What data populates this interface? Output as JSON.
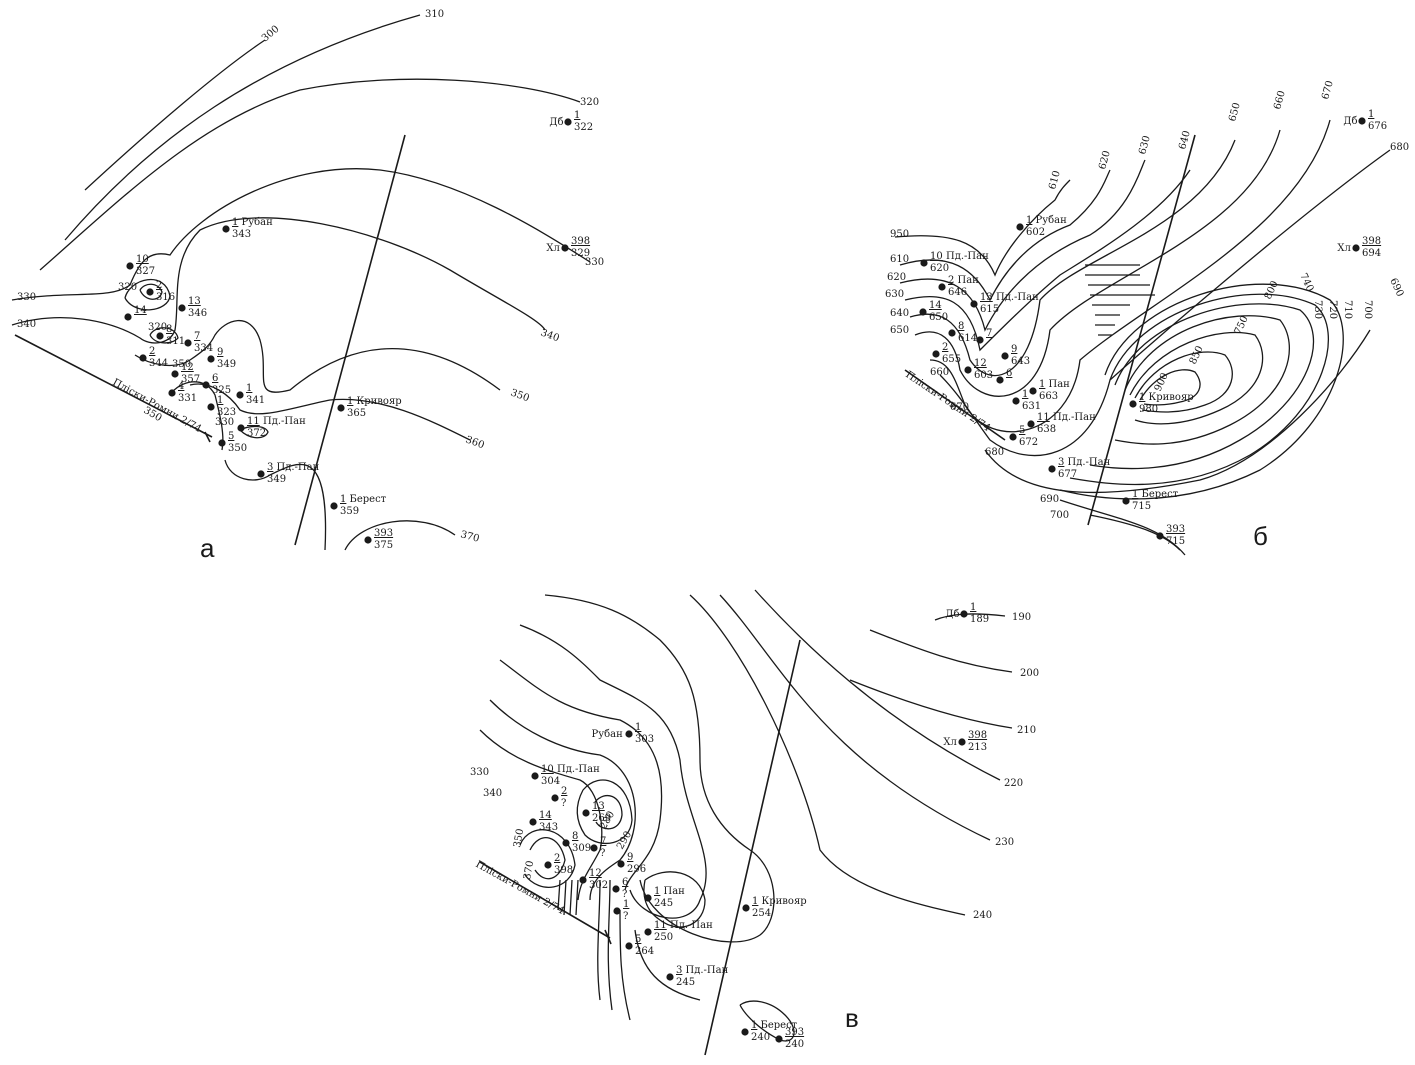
{
  "panels": [
    {
      "id": "a",
      "label": "а",
      "section_label": "Пліски-Ромни 2/74",
      "contours": [
        "300",
        "310",
        "320",
        "330",
        "330",
        "340",
        "340",
        "350",
        "360",
        "370",
        "320",
        "320",
        "350",
        "350",
        "330"
      ],
      "wells": [
        {
          "num": "1",
          "name": "Дб",
          "value": "322"
        },
        {
          "num": "398",
          "name": "Хл",
          "value": "329"
        },
        {
          "num": "1",
          "name": "Рубан",
          "value": "343"
        },
        {
          "num": "10",
          "name": "",
          "value": "327"
        },
        {
          "num": "2",
          "name": "",
          "value": "316"
        },
        {
          "num": "13",
          "name": "",
          "value": "346"
        },
        {
          "num": "14",
          "name": "",
          "value": ""
        },
        {
          "num": "8",
          "name": "",
          "value": "311"
        },
        {
          "num": "7",
          "name": "",
          "value": "334"
        },
        {
          "num": "2",
          "name": "",
          "value": "344"
        },
        {
          "num": "12",
          "name": "",
          "value": "357"
        },
        {
          "num": "9",
          "name": "",
          "value": "349"
        },
        {
          "num": "6",
          "name": "",
          "value": "325"
        },
        {
          "num": "4",
          "name": "",
          "value": "331"
        },
        {
          "num": "1",
          "name": "",
          "value": "341"
        },
        {
          "num": "1",
          "name": "",
          "value": "323"
        },
        {
          "num": "11",
          "name": "Пд.-Пан",
          "value": "372"
        },
        {
          "num": "5",
          "name": "",
          "value": "350"
        },
        {
          "num": "3",
          "name": "Пд.-Пан",
          "value": "349"
        },
        {
          "num": "1",
          "name": "Кривояр",
          "value": "365"
        },
        {
          "num": "1",
          "name": "Берест",
          "value": "359"
        },
        {
          "num": "393",
          "name": "",
          "value": "375"
        }
      ]
    },
    {
      "id": "b",
      "label": "б",
      "section_label": "Пліски-Ромни 2/74",
      "contours": [
        "610",
        "620",
        "630",
        "640",
        "650",
        "660",
        "670",
        "680",
        "690",
        "700",
        "710",
        "720",
        "730",
        "740",
        "750",
        "800",
        "850",
        "900",
        "950",
        "610",
        "620",
        "630",
        "640",
        "650",
        "660",
        "670",
        "680",
        "690",
        "700",
        "710",
        "720"
      ],
      "wells": [
        {
          "num": "1",
          "name": "Дб",
          "value": "676"
        },
        {
          "num": "398",
          "name": "Хл",
          "value": "694"
        },
        {
          "num": "1",
          "name": "Рубан",
          "value": "602"
        },
        {
          "num": "10",
          "name": "Пд.-Пан",
          "value": "620"
        },
        {
          "num": "2",
          "name": "Пан",
          "value": "646"
        },
        {
          "num": "13",
          "name": "Пд.-Пан",
          "value": "615"
        },
        {
          "num": "14",
          "name": "",
          "value": "650"
        },
        {
          "num": "8",
          "name": "",
          "value": "614"
        },
        {
          "num": "7",
          "name": "",
          "value": ""
        },
        {
          "num": "2",
          "name": "",
          "value": "655"
        },
        {
          "num": "12",
          "name": "",
          "value": "603"
        },
        {
          "num": "9",
          "name": "",
          "value": "643"
        },
        {
          "num": "6",
          "name": "",
          "value": ""
        },
        {
          "num": "1",
          "name": "Пан",
          "value": "663"
        },
        {
          "num": "1",
          "name": "",
          "value": "631"
        },
        {
          "num": "11",
          "name": "Пд.-Пан",
          "value": "638"
        },
        {
          "num": "5",
          "name": "",
          "value": "672"
        },
        {
          "num": "3",
          "name": "Пд.-Пан",
          "value": "677"
        },
        {
          "num": "1",
          "name": "Кривояр",
          "value": "980"
        },
        {
          "num": "1",
          "name": "Берест",
          "value": "715"
        },
        {
          "num": "393",
          "name": "",
          "value": "715"
        }
      ]
    },
    {
      "id": "c",
      "label": "в",
      "section_label": "Пліски-Ромни 2/74",
      "contours": [
        "190",
        "200",
        "210",
        "220",
        "230",
        "240",
        "330",
        "340",
        "350",
        "370",
        "290",
        "280"
      ],
      "wells": [
        {
          "num": "1",
          "name": "Дб",
          "value": "189"
        },
        {
          "num": "398",
          "name": "Хл",
          "value": "213"
        },
        {
          "num": "1",
          "name": "Рубан",
          "value": "303"
        },
        {
          "num": "10",
          "name": "Пд.-Пан",
          "value": "304"
        },
        {
          "num": "2",
          "name": "",
          "value": "?"
        },
        {
          "num": "13",
          "name": "",
          "value": "269"
        },
        {
          "num": "14",
          "name": "",
          "value": "343"
        },
        {
          "num": "8",
          "name": "",
          "value": "309"
        },
        {
          "num": "7",
          "name": "",
          "value": "?"
        },
        {
          "num": "9",
          "name": "",
          "value": "296"
        },
        {
          "num": "2",
          "name": "",
          "value": "398"
        },
        {
          "num": "12",
          "name": "",
          "value": "302"
        },
        {
          "num": "6",
          "name": "",
          "value": "?"
        },
        {
          "num": "1",
          "name": "Пан",
          "value": "245"
        },
        {
          "num": "1",
          "name": "",
          "value": "?"
        },
        {
          "num": "11",
          "name": "Пд.-Пан",
          "value": "250"
        },
        {
          "num": "5",
          "name": "",
          "value": "264"
        },
        {
          "num": "3",
          "name": "Пд.-Пан",
          "value": "245"
        },
        {
          "num": "1",
          "name": "Кривояр",
          "value": "254"
        },
        {
          "num": "1",
          "name": "Берест",
          "value": "240"
        },
        {
          "num": "393",
          "name": "",
          "value": "240"
        }
      ]
    }
  ]
}
